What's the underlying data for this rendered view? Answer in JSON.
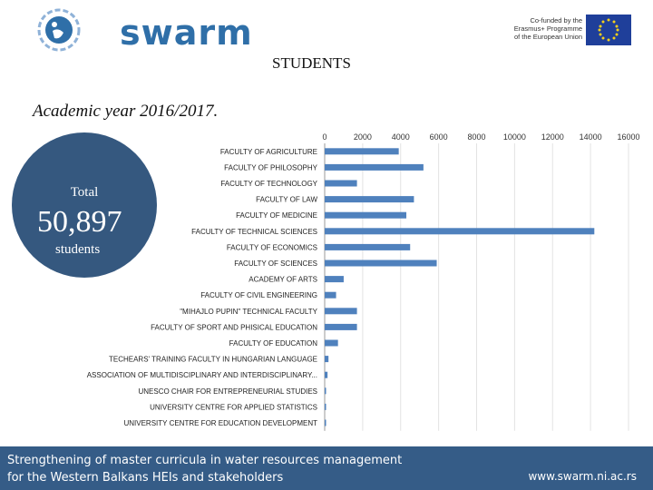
{
  "header": {
    "logo_text": "swarm",
    "eu_lines": [
      "Co-funded by the",
      "Erasmus+ Programme",
      "of the European Union"
    ]
  },
  "slide": {
    "title": "STUDENTS",
    "year": "Academic year 2016/2017.",
    "total_label": "Total",
    "total_value": "50,897",
    "total_unit": "students"
  },
  "chart_data": {
    "type": "bar",
    "orientation": "horizontal",
    "xlim": [
      0,
      16000
    ],
    "ticks": [
      0,
      2000,
      4000,
      6000,
      8000,
      10000,
      12000,
      14000,
      16000
    ],
    "grid": true,
    "categories": [
      "FACULTY OF AGRICULTURE",
      "FACULTY OF PHILOSOPHY",
      "FACULTY OF TECHNOLOGY",
      "FACULTY OF LAW",
      "FACULTY OF MEDICINE",
      "FACULTY OF TECHNICAL SCIENCES",
      "FACULTY OF ECONOMICS",
      "FACULTY OF SCIENCES",
      "ACADEMY OF ARTS",
      "FACULTY OF CIVIL ENGINEERING",
      "\"MIHAJLO PUPIN\" TECHNICAL FACULTY",
      "FACULTY OF SPORT AND PHISICAL EDUCATION",
      "FACULTY OF EDUCATION",
      "TECHEARS' TRAINING FACULTY IN HUNGARIAN LANGUAGE",
      "ASSOCIATION OF MULTIDISCIPLINARY AND INTERDISCIPLINARY...",
      "UNESCO CHAIR FOR ENTREPRENEURIAL STUDIES",
      "UNIVERSITY CENTRE FOR APPLIED STATISTICS",
      "UNIVERSITY CENTRE FOR EDUCATION DEVELOPMENT"
    ],
    "values": [
      3900,
      5200,
      1700,
      4700,
      4300,
      14200,
      4500,
      5900,
      1000,
      600,
      1700,
      1700,
      700,
      200,
      150,
      40,
      30,
      20
    ],
    "color": "#4f81bd"
  },
  "footer": {
    "line1": "Strengthening of master curricula in water resources  management",
    "line2": "for the Western Balkans HEIs and stakeholders",
    "url": "www.swarm.ni.ac.rs"
  }
}
